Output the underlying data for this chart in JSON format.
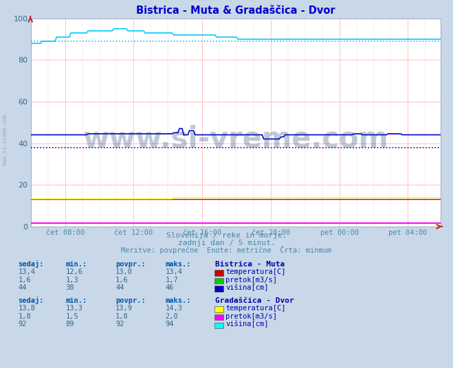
{
  "title": "Bistrica - Muta & Gradaščica - Dvor",
  "title_color": "#0000cc",
  "bg_color": "#c8d8e8",
  "plot_bg_color": "#ffffff",
  "xlim": [
    0,
    287
  ],
  "ylim": [
    0,
    100
  ],
  "yticks": [
    0,
    20,
    40,
    60,
    80,
    100
  ],
  "xtick_labels": [
    "čet 08:00",
    "čet 12:00",
    "čet 16:00",
    "čet 20:00",
    "pet 00:00",
    "pet 04:00"
  ],
  "xtick_positions": [
    24,
    72,
    120,
    168,
    216,
    264
  ],
  "dotted_line1_y": 89,
  "dotted_line1_color": "#00ccff",
  "dotted_line2_y": 38,
  "dotted_line2_color": "#0000cc",
  "watermark": "www.si-vreme.com",
  "watermark_color": "#1a3a6e",
  "watermark_alpha": 0.28,
  "subtitle1": "Slovenija / reke in morje.",
  "subtitle2": "zadnji dan / 5 minut.",
  "subtitle3": "Meritve: povprečne  Enote: metrične  Črta: minmum",
  "subtitle_color": "#4488aa",
  "legend_title1": "Bistrica - Muta",
  "legend_title2": "Gradaščica - Dvor",
  "legend_color": "#0000aa",
  "col_header_color": "#0055aa",
  "col_headers": [
    "sedaj:",
    "min.:",
    "povpr.:",
    "maks.:"
  ],
  "bistrica_rows": [
    {
      "sedaj": "13,4",
      "min": "12,6",
      "povpr": "13,0",
      "maks": "13,4",
      "color": "#cc0000",
      "label": "temperatura[C]"
    },
    {
      "sedaj": "1,6",
      "min": "1,3",
      "povpr": "1,6",
      "maks": "1,7",
      "color": "#00cc00",
      "label": "pretok[m3/s]"
    },
    {
      "sedaj": "44",
      "min": "38",
      "povpr": "44",
      "maks": "46",
      "color": "#0000cc",
      "label": "višina[cm]"
    }
  ],
  "gradascica_rows": [
    {
      "sedaj": "13,8",
      "min": "13,3",
      "povpr": "13,9",
      "maks": "14,3",
      "color": "#ffff00",
      "label": "temperatura[C]"
    },
    {
      "sedaj": "1,8",
      "min": "1,5",
      "povpr": "1,8",
      "maks": "2,0",
      "color": "#ff00ff",
      "label": "pretok[m3/s]"
    },
    {
      "sedaj": "92",
      "min": "89",
      "povpr": "92",
      "maks": "94",
      "color": "#00ffff",
      "label": "višina[cm]"
    }
  ],
  "n_points": 288,
  "side_watermark": "www.si-vreme.com"
}
